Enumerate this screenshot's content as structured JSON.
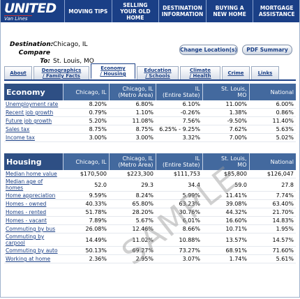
{
  "header": {
    "logo": "UNITED",
    "logo_sub": "Van Lines",
    "nav": [
      "MOVING TIPS",
      "SELLING YOUR OLD HOME",
      "DESTINATION INFORMATION",
      "BUYING A NEW HOME",
      "MORTGAGE ASSISTANCE"
    ]
  },
  "location": {
    "destination_label": "Destination:",
    "destination": "Chicago, IL",
    "compare_label": "Compare To:",
    "compare": "St. Louis, MO"
  },
  "buttons": [
    "Change Location(s)",
    "PDF Summary"
  ],
  "tabs": [
    "About",
    "Demographics / Family Facts",
    "Economy / Housing",
    "Education / Schools",
    "Climate / Health",
    "Crime",
    "Links"
  ],
  "economy": {
    "columns": [
      "Economy",
      "Chicago, IL",
      "Chicago, IL\n(Metro Area)",
      "IL\n(Entire State)",
      "St. Louis,\nMO",
      "National"
    ],
    "rows": [
      {
        "label": "Unemployment rate",
        "values": [
          "8.20%",
          "6.80%",
          "6.10%",
          "11.00%",
          "6.00%"
        ]
      },
      {
        "label": "Recent job growth",
        "values": [
          "0.79%",
          "1.10%",
          "-0.26%",
          "1.38%",
          "0.86%"
        ]
      },
      {
        "label": "Future job growth",
        "values": [
          "5.20%",
          "11.08%",
          "7.56%",
          "-9.50%",
          "11.40%"
        ]
      },
      {
        "label": "Sales tax",
        "values": [
          "8.75%",
          "8.75%",
          "6.25% - 9.25%",
          "7.62%",
          "5.63%"
        ]
      },
      {
        "label": "Income tax",
        "values": [
          "3.00%",
          "3.00%",
          "3.32%",
          "7.00%",
          "5.02%"
        ]
      }
    ]
  },
  "housing": {
    "columns": [
      "Housing",
      "Chicago, IL",
      "Chicago, IL\n(Metro Area)",
      "IL\n(Entire State)",
      "St. Louis,\nMO",
      "National"
    ],
    "rows": [
      {
        "label": "Median home value",
        "values": [
          "$170,500",
          "$223,300",
          "$111,753",
          "$85,800",
          "$126,047"
        ]
      },
      {
        "label": "Median age of homes",
        "values": [
          "52.0",
          "29.3",
          "34.4",
          "59.0",
          "27.8"
        ]
      },
      {
        "label": "Home appreciation",
        "values": [
          "9.59%",
          "8.24%",
          "5.99%",
          "11.41%",
          "7.74%"
        ]
      },
      {
        "label": "Homes - owned",
        "values": [
          "40.33%",
          "65.80%",
          "63.23%",
          "39.08%",
          "63.40%"
        ]
      },
      {
        "label": "Homes - rented",
        "values": [
          "51.78%",
          "28.20%",
          "30.76%",
          "44.32%",
          "21.70%"
        ]
      },
      {
        "label": "Homes - vacant",
        "values": [
          "7.89%",
          "5.67%",
          "6.01%",
          "16.60%",
          "14.83%"
        ]
      },
      {
        "label": "Commuting by bus",
        "values": [
          "26.08%",
          "12.46%",
          "8.66%",
          "10.71%",
          "1.95%"
        ]
      },
      {
        "label": "Commuting by carpool",
        "values": [
          "14.49%",
          "11.02%",
          "10.88%",
          "13.57%",
          "14.57%"
        ]
      },
      {
        "label": "Commuting by auto",
        "values": [
          "50.13%",
          "69.27%",
          "73.27%",
          "68.91%",
          "71.60%"
        ]
      },
      {
        "label": "Working at home",
        "values": [
          "2.36%",
          "2.95%",
          "3.07%",
          "1.74%",
          "5.61%"
        ]
      }
    ]
  },
  "watermark": "SAMPLE"
}
